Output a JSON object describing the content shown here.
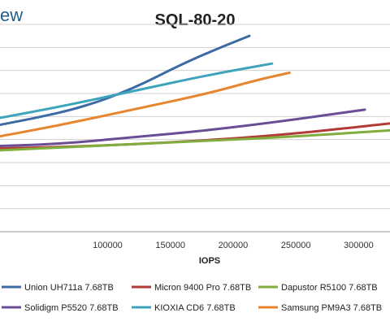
{
  "page": {
    "brand_fragment": "ew"
  },
  "chart_data": {
    "type": "line",
    "title": "SQL-80-20",
    "xlabel": "IOPS",
    "ylabel": "",
    "xlim": [
      0,
      325000
    ],
    "ylim": [
      0,
      9
    ],
    "x_ticks": [
      100000,
      150000,
      200000,
      250000,
      300000
    ],
    "x_tick_labels": [
      "100000",
      "150000",
      "200000",
      "250000",
      "300000"
    ],
    "y_gridlines": [
      1,
      2,
      3,
      4,
      5,
      6,
      7,
      8,
      9
    ],
    "grid": "horizontal",
    "legend_position": "bottom",
    "series": [
      {
        "name": "Union UH711a 7.68TB",
        "color": "#3d6aa5",
        "points": [
          [
            0,
            4.5
          ],
          [
            40000,
            4.9
          ],
          [
            80000,
            5.4
          ],
          [
            120000,
            6.2
          ],
          [
            160000,
            7.3
          ],
          [
            190000,
            8.0
          ],
          [
            213000,
            8.5
          ]
        ]
      },
      {
        "name": "Micron 9400 Pro 7.68TB",
        "color": "#b23a37",
        "points": [
          [
            0,
            3.6
          ],
          [
            80000,
            3.7
          ],
          [
            160000,
            3.9
          ],
          [
            240000,
            4.2
          ],
          [
            325000,
            4.7
          ]
        ]
      },
      {
        "name": "Dapustor R5100 7.68TB",
        "color": "#7fae3e",
        "points": [
          [
            0,
            3.5
          ],
          [
            80000,
            3.7
          ],
          [
            160000,
            3.9
          ],
          [
            240000,
            4.1
          ],
          [
            325000,
            4.4
          ]
        ]
      },
      {
        "name": "Solidigm P5520 7.68TB",
        "color": "#6b4d96",
        "points": [
          [
            0,
            3.7
          ],
          [
            60000,
            3.8
          ],
          [
            120000,
            4.1
          ],
          [
            180000,
            4.4
          ],
          [
            240000,
            4.8
          ],
          [
            305000,
            5.3
          ]
        ]
      },
      {
        "name": "KIOXIA CD6 7.68TB",
        "color": "#3ea4bb",
        "points": [
          [
            0,
            4.8
          ],
          [
            60000,
            5.4
          ],
          [
            120000,
            6.1
          ],
          [
            180000,
            6.8
          ],
          [
            231000,
            7.3
          ]
        ]
      },
      {
        "name": "Samsung PM9A3 7.68TB",
        "color": "#e8852f",
        "points": [
          [
            0,
            4.0
          ],
          [
            60000,
            4.6
          ],
          [
            120000,
            5.3
          ],
          [
            180000,
            6.0
          ],
          [
            220000,
            6.6
          ],
          [
            245000,
            6.9
          ]
        ]
      }
    ]
  }
}
